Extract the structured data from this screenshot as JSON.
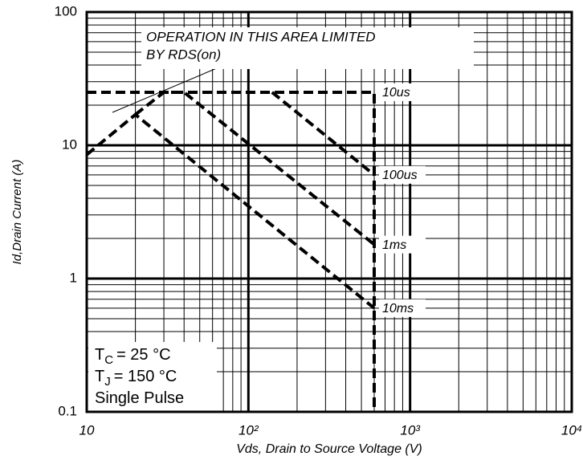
{
  "chart_data": {
    "type": "line",
    "xlabel": "Vds, Drain to Source Voltage (V)",
    "ylabel": "Id,Drain Current (A)",
    "xscale": "log",
    "yscale": "log",
    "grid": true,
    "xlim": [
      10,
      10000
    ],
    "ylim": [
      0.1,
      100
    ],
    "xticks": [
      10,
      {
        "value": 100,
        "label": "10²"
      },
      {
        "value": 1000,
        "label": "10³"
      },
      {
        "value": 10000,
        "label": "10⁴"
      }
    ],
    "yticks": [
      0.1,
      1,
      10,
      100
    ],
    "xminorticks": [
      20,
      30,
      40,
      50,
      60,
      70,
      80,
      90,
      200,
      300,
      400,
      500,
      600,
      700,
      800,
      900,
      2000,
      3000,
      4000,
      5000,
      6000,
      7000,
      8000,
      9000
    ],
    "yminorticks": [
      0.2,
      0.3,
      0.4,
      0.5,
      0.6,
      0.7,
      0.8,
      0.9,
      2,
      3,
      4,
      5,
      6,
      7,
      8,
      9,
      20,
      30,
      40,
      50,
      60,
      70,
      80,
      90
    ],
    "annotation": [
      "OPERATION IN THIS AREA LIMITED",
      "BY RDS(on)"
    ],
    "conditions": [
      {
        "main": "T",
        "sub": "C",
        "rest": "= 25 °C"
      },
      {
        "main": "T",
        "sub": "J",
        "rest": "= 150 °C"
      },
      {
        "main": "Single Pulse"
      }
    ],
    "series": [
      {
        "name": "10us",
        "color": "#000000",
        "x": [
          10,
          600,
          600
        ],
        "values": [
          25,
          25,
          0.1
        ]
      },
      {
        "name": "100us",
        "color": "#000000",
        "x": [
          140,
          600
        ],
        "values": [
          25,
          6
        ]
      },
      {
        "name": "1ms",
        "color": "#000000",
        "x": [
          20,
          30,
          40,
          600
        ],
        "values": [
          17,
          25,
          25,
          1.8
        ]
      },
      {
        "name": "10ms",
        "color": "#000000",
        "x": [
          10,
          20,
          600
        ],
        "values": [
          8.5,
          17,
          0.6
        ]
      }
    ]
  }
}
